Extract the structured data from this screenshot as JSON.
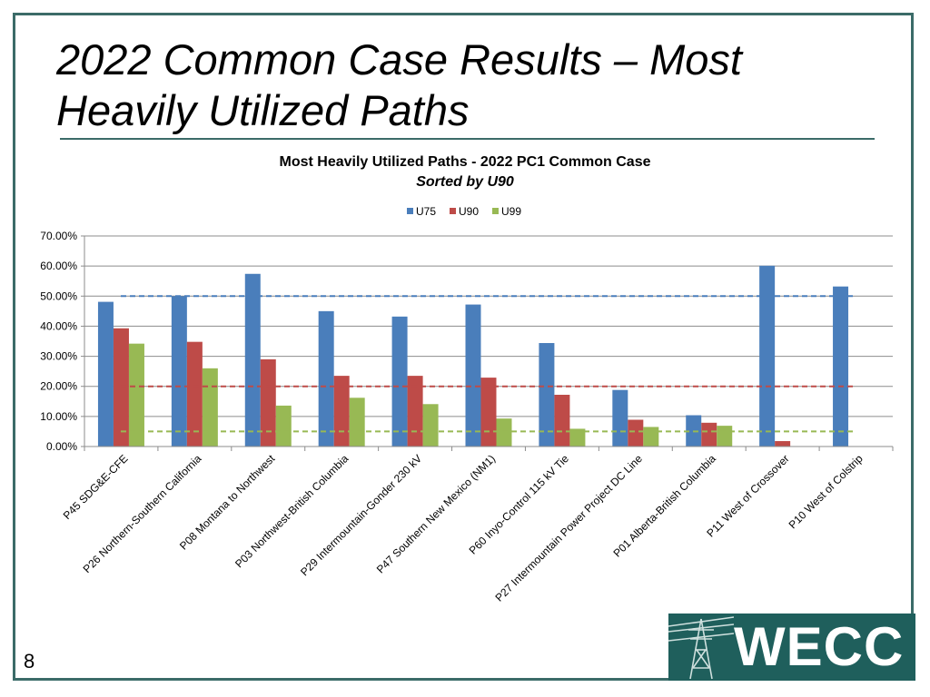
{
  "slide": {
    "title": "2022 Common Case Results – Most Heavily Utilized Paths",
    "page_number": "8",
    "logo_text": "WECC"
  },
  "colors": {
    "frame": "#3b6b68",
    "U75": "#4a7ebb",
    "U90": "#be4b48",
    "U99": "#98b954",
    "logo_bg": "#1f5f5c"
  },
  "chart_data": {
    "type": "bar",
    "title": "Most Heavily Utilized Paths - 2022 PC1 Common Case",
    "subtitle": "Sorted by U90",
    "legend_position": "top",
    "grid": true,
    "ylim": [
      0,
      70
    ],
    "yticks": [
      0,
      10,
      20,
      30,
      40,
      50,
      60,
      70
    ],
    "ytick_labels": [
      "0.00%",
      "10.00%",
      "20.00%",
      "30.00%",
      "40.00%",
      "50.00%",
      "60.00%",
      "70.00%"
    ],
    "categories": [
      "P45 SDG&E-CFE",
      "P26 Northern-Southern California",
      "P08 Montana to Northwest",
      "P03 Northwest-British Columbia",
      "P29 Intermountain-Gonder 230 kV",
      "P47 Southern New Mexico (NM1)",
      "P60 Inyo-Control 115 kV Tie",
      "P27 Intermountain Power Project DC Line",
      "P01 Alberta-British Columbia",
      "P11 West of Crossover",
      "P10 West of Colstrip"
    ],
    "series": [
      {
        "name": "U75",
        "color": "#4a7ebb",
        "values": [
          48.1,
          50.0,
          57.4,
          45.0,
          43.2,
          47.2,
          34.4,
          18.8,
          10.4,
          60.1,
          53.2
        ]
      },
      {
        "name": "U90",
        "color": "#be4b48",
        "values": [
          39.3,
          34.8,
          29.0,
          23.5,
          23.5,
          22.9,
          17.2,
          8.9,
          7.9,
          1.8,
          0.0
        ]
      },
      {
        "name": "U99",
        "color": "#98b954",
        "values": [
          34.2,
          26.0,
          13.6,
          16.2,
          14.1,
          9.3,
          5.9,
          6.5,
          6.9,
          0.0,
          0.0
        ]
      }
    ],
    "reference_lines": [
      {
        "series": "U75",
        "value": 50,
        "color": "#4a7ebb"
      },
      {
        "series": "U90",
        "value": 20,
        "color": "#be4b48"
      },
      {
        "series": "U99",
        "value": 5,
        "color": "#98b954"
      }
    ]
  }
}
